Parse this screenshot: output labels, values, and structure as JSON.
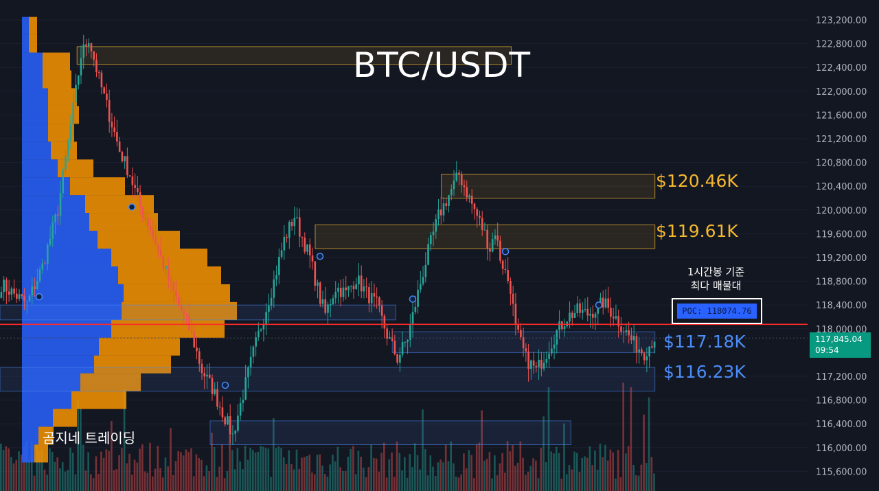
{
  "title": "BTC/USDT",
  "watermark": "곰지네 트레이딩",
  "zones": {
    "z1": "$120.46K",
    "z2": "$119.61K",
    "z3": "$117.18K",
    "z4": "$116.23K"
  },
  "note": {
    "line1": "1시간봉 기준",
    "line2": "최다 매물대"
  },
  "poc_label": "POC: 118074.76",
  "last_price": {
    "price": "117,845.04",
    "countdown": "09:54"
  },
  "colors": {
    "background": "#131722",
    "up": "#26a69a",
    "down": "#ef5350",
    "gold": "#f5b82e",
    "blue": "#4a8cf7",
    "poc": "#2962ff",
    "red_line": "#ff2a2a"
  },
  "chart_data": {
    "type": "candlestick",
    "title": "BTC/USDT",
    "interval": "1시간봉",
    "y_ticks": [
      "123,200.00",
      "122,800.00",
      "122,400.00",
      "122,000.00",
      "121,600.00",
      "121,200.00",
      "120,800.00",
      "120,400.00",
      "120,000.00",
      "119,600.00",
      "119,200.00",
      "118,800.00",
      "118,400.00",
      "118,000.00",
      "117,200.00",
      "116,800.00",
      "116,400.00",
      "116,000.00",
      "115,600.00"
    ],
    "ylim": [
      115500,
      123300
    ],
    "poc": 118074.76,
    "last_price": 117845.04,
    "zone_levels": [
      120460,
      119610,
      117180,
      116230
    ],
    "close_path": [
      [
        0,
        118750
      ],
      [
        6,
        118550
      ],
      [
        10,
        118420
      ],
      [
        16,
        119050
      ],
      [
        22,
        120000
      ],
      [
        28,
        121700
      ],
      [
        31,
        122600
      ],
      [
        34,
        122900
      ],
      [
        38,
        122200
      ],
      [
        42,
        121600
      ],
      [
        46,
        121000
      ],
      [
        50,
        120600
      ],
      [
        54,
        120050
      ],
      [
        58,
        119700
      ],
      [
        62,
        119200
      ],
      [
        66,
        118700
      ],
      [
        70,
        118300
      ],
      [
        74,
        117900
      ],
      [
        78,
        117300
      ],
      [
        82,
        117000
      ],
      [
        86,
        116600
      ],
      [
        90,
        116200
      ],
      [
        94,
        116900
      ],
      [
        98,
        117600
      ],
      [
        102,
        118200
      ],
      [
        106,
        118800
      ],
      [
        110,
        119500
      ],
      [
        114,
        119900
      ],
      [
        116,
        119650
      ],
      [
        120,
        119200
      ],
      [
        124,
        118500
      ],
      [
        126,
        118250
      ],
      [
        130,
        118700
      ],
      [
        134,
        118600
      ],
      [
        138,
        118850
      ],
      [
        142,
        118600
      ],
      [
        146,
        118400
      ],
      [
        150,
        117900
      ],
      [
        154,
        117500
      ],
      [
        158,
        117850
      ],
      [
        162,
        118600
      ],
      [
        166,
        119300
      ],
      [
        170,
        119900
      ],
      [
        174,
        120250
      ],
      [
        178,
        120600
      ],
      [
        180,
        120400
      ],
      [
        184,
        120000
      ],
      [
        188,
        119600
      ],
      [
        190,
        119350
      ],
      [
        192,
        119650
      ],
      [
        194,
        119200
      ],
      [
        198,
        118700
      ],
      [
        200,
        118000
      ],
      [
        204,
        117500
      ],
      [
        208,
        117300
      ],
      [
        212,
        117600
      ],
      [
        216,
        117950
      ],
      [
        220,
        118200
      ],
      [
        224,
        118300
      ],
      [
        228,
        118250
      ],
      [
        232,
        118350
      ],
      [
        234,
        118450
      ],
      [
        238,
        118250
      ],
      [
        242,
        118000
      ],
      [
        246,
        117750
      ],
      [
        250,
        117600
      ],
      [
        254,
        117850
      ]
    ],
    "volume_profile": [
      {
        "price": 123100,
        "buy": 10,
        "sell": 12
      },
      {
        "price": 122800,
        "buy": 10,
        "sell": 12
      },
      {
        "price": 122500,
        "buy": 30,
        "sell": 40
      },
      {
        "price": 122200,
        "buy": 30,
        "sell": 42
      },
      {
        "price": 121900,
        "buy": 38,
        "sell": 42
      },
      {
        "price": 121600,
        "buy": 38,
        "sell": 45
      },
      {
        "price": 121300,
        "buy": 38,
        "sell": 38
      },
      {
        "price": 121000,
        "buy": 42,
        "sell": 38
      },
      {
        "price": 120700,
        "buy": 52,
        "sell": 52
      },
      {
        "price": 120400,
        "buy": 70,
        "sell": 80
      },
      {
        "price": 120100,
        "buy": 92,
        "sell": 100
      },
      {
        "price": 119800,
        "buy": 98,
        "sell": 100
      },
      {
        "price": 119500,
        "buy": 110,
        "sell": 120
      },
      {
        "price": 119200,
        "buy": 130,
        "sell": 140
      },
      {
        "price": 118900,
        "buy": 140,
        "sell": 150
      },
      {
        "price": 118600,
        "buy": 148,
        "sell": 155
      },
      {
        "price": 118300,
        "buy": 145,
        "sell": 168
      },
      {
        "price": 118000,
        "buy": 130,
        "sell": 165
      },
      {
        "price": 117700,
        "buy": 112,
        "sell": 118
      },
      {
        "price": 117400,
        "buy": 105,
        "sell": 112
      },
      {
        "price": 117100,
        "buy": 85,
        "sell": 88
      },
      {
        "price": 116800,
        "buy": 72,
        "sell": 80
      },
      {
        "price": 116500,
        "buy": 45,
        "sell": 35
      },
      {
        "price": 116200,
        "buy": 24,
        "sell": 22
      },
      {
        "price": 115900,
        "buy": 18,
        "sell": 20
      }
    ],
    "zones": [
      {
        "label": "",
        "top": 122750,
        "bottom": 122450,
        "from": 0.11,
        "to": 0.73,
        "color": "gold"
      },
      {
        "label": "$120.46K",
        "top": 120600,
        "bottom": 120200,
        "from": 0.63,
        "to": 0.935,
        "color": "gold"
      },
      {
        "label": "$119.61K",
        "top": 119750,
        "bottom": 119350,
        "from": 0.45,
        "to": 0.935,
        "color": "gold"
      },
      {
        "label": "",
        "top": 118400,
        "bottom": 118150,
        "from": 0.0,
        "to": 0.565,
        "color": "blue"
      },
      {
        "label": "$117.18K",
        "top": 117950,
        "bottom": 117600,
        "from": 0.56,
        "to": 0.935,
        "color": "blue"
      },
      {
        "label": "$116.23K",
        "top": 117350,
        "bottom": 116950,
        "from": 0.0,
        "to": 0.935,
        "color": "blue"
      },
      {
        "label": "",
        "top": 116450,
        "bottom": 116050,
        "from": 0.3,
        "to": 0.815,
        "color": "blue"
      }
    ]
  }
}
